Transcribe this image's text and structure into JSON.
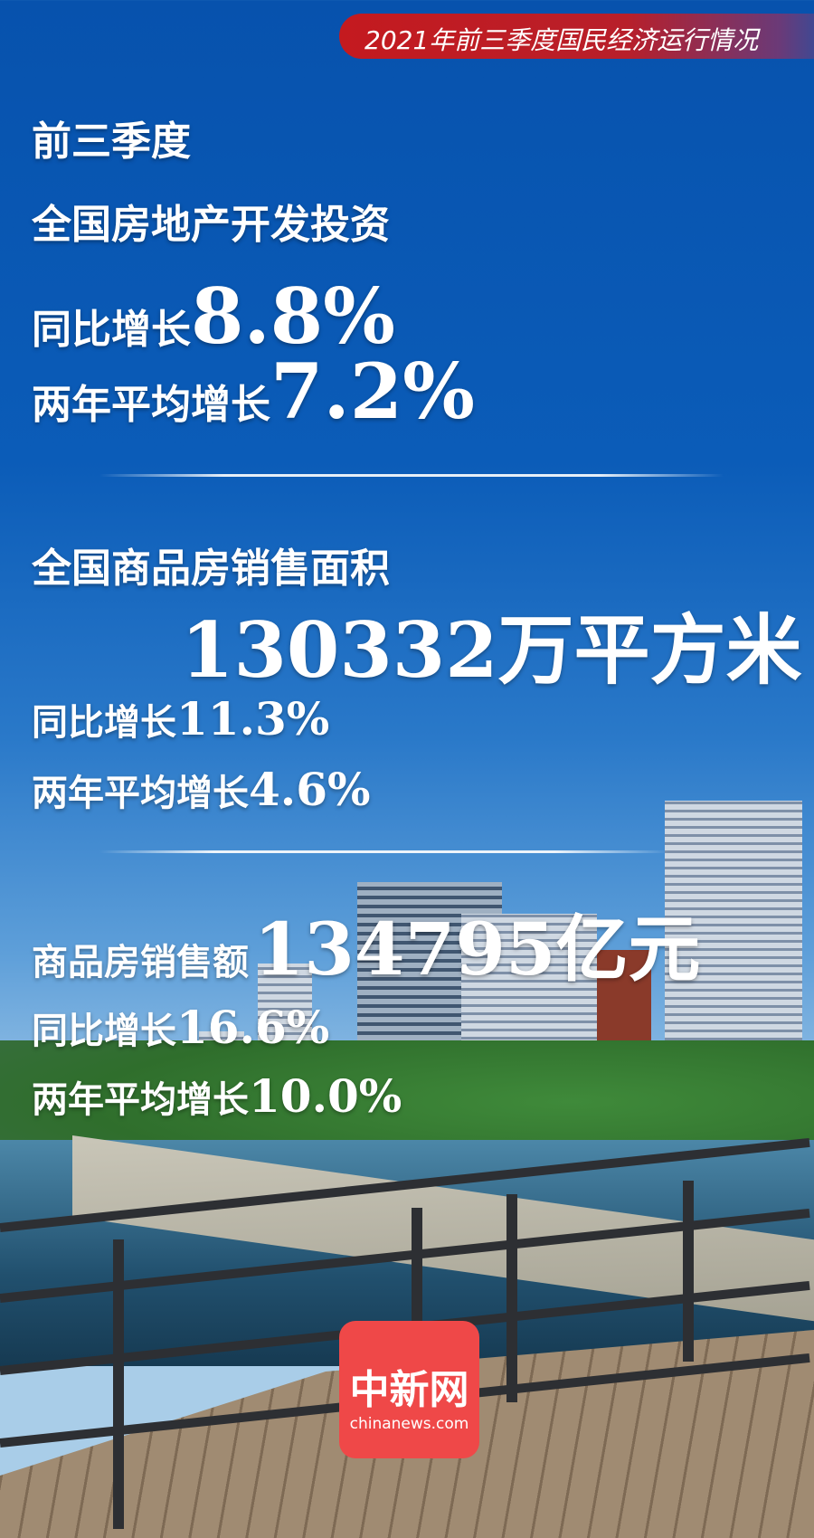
{
  "banner": {
    "title": "2021年前三季度国民经济运行情况"
  },
  "section1": {
    "line1": "前三季度",
    "line2": "全国房地产开发投资",
    "yoy_label": "同比增长",
    "yoy_value": "8.8%",
    "avg_label": "两年平均增长",
    "avg_value": "7.2%"
  },
  "section2": {
    "title": "全国商品房销售面积",
    "value": "130332万平方米",
    "yoy_label": "同比增长",
    "yoy_value": "11.3%",
    "avg_label": "两年平均增长",
    "avg_value": "4.6%"
  },
  "section3": {
    "title": "商品房销售额",
    "value": "134795亿元",
    "yoy_label": "同比增长",
    "yoy_value": "16.6%",
    "avg_label": "两年平均增长",
    "avg_value": "10.0%"
  },
  "logo": {
    "name": "中新网",
    "domain": "chinanews.com"
  },
  "colors": {
    "background": "#0752ad",
    "banner": "#c41a1f",
    "logo": "#ef4848"
  }
}
